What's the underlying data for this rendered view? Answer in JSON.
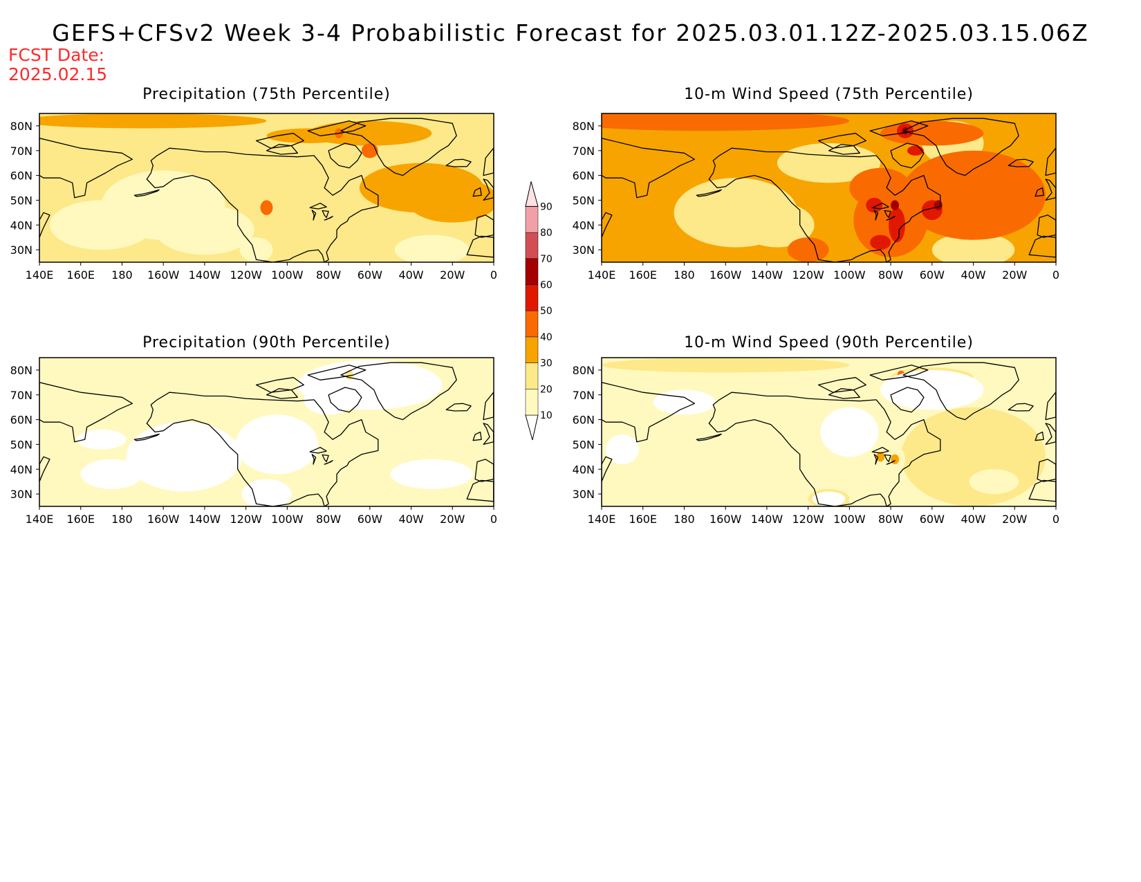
{
  "title": "GEFS+CFSv2 Week 3-4 Probabilistic Forecast for 2025.03.01.12Z-2025.03.15.06Z",
  "fcst_date": {
    "label": "FCST Date:",
    "value": "2025.02.15"
  },
  "axis": {
    "lon_ticks": [
      "140E",
      "160E",
      "180",
      "160W",
      "140W",
      "120W",
      "100W",
      "80W",
      "60W",
      "40W",
      "20W",
      "0"
    ],
    "lat_ticks": [
      "80N",
      "70N",
      "60N",
      "50N",
      "40N",
      "30N"
    ]
  },
  "panels": [
    {
      "title": "Precipitation (75th Percentile)",
      "variable": "precipitation",
      "percentile": 75,
      "background_level": 20,
      "coverage_summary": "mostly 10-30 with 30-40 over the North Atlantic and near Greenland"
    },
    {
      "title": "10-m Wind Speed (75th Percentile)",
      "variable": "wind",
      "percentile": 75,
      "background_level": 40,
      "coverage_summary": "mostly 30-50 with 50-60 over eastern North America and the North Atlantic"
    },
    {
      "title": "Precipitation (90th Percentile)",
      "variable": "precipitation",
      "percentile": 90,
      "background_level": 10,
      "coverage_summary": "mostly below 20, large areas below 10"
    },
    {
      "title": "10-m Wind Speed (90th Percentile)",
      "variable": "wind",
      "percentile": 90,
      "background_level": 10,
      "coverage_summary": "mostly 10-20 with 20-30 over the North Atlantic"
    }
  ],
  "colorbar": {
    "labels": [
      "10",
      "20",
      "30",
      "40",
      "50",
      "60",
      "70",
      "80",
      "90"
    ],
    "colors": [
      "#fff9c0",
      "#fde98a",
      "#f7a400",
      "#f96b00",
      "#e11800",
      "#a50000",
      "#d24e55",
      "#f2a0a8",
      "#fbe3e3"
    ]
  }
}
